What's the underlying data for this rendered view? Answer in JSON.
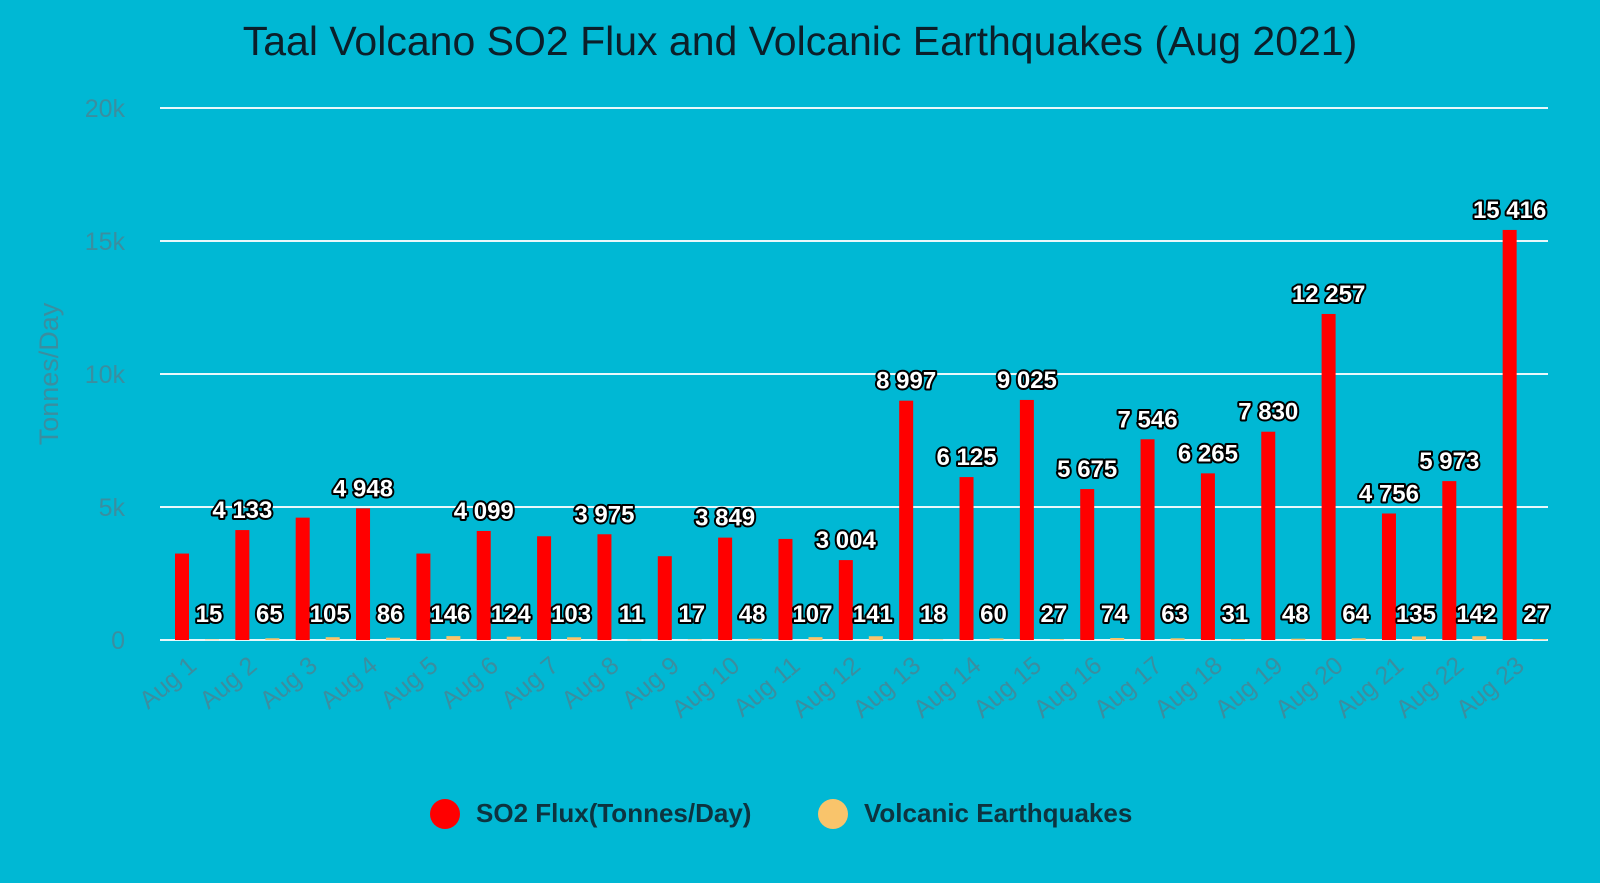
{
  "colors": {
    "background": "#00B8D4",
    "grid": "#e8f8fb",
    "axis_text": "#3a8ea0",
    "so2": "#FF0000",
    "quakes": "#F9C46B"
  },
  "chart_data": {
    "type": "bar",
    "title": "Taal Volcano SO2 Flux and Volcanic Earthquakes (Aug 2021)",
    "ylabel": "Tonnes/Day",
    "xlabel": "",
    "ylim": [
      0,
      20000
    ],
    "yticks": [
      0,
      5000,
      10000,
      15000,
      20000
    ],
    "ytick_labels": [
      "0",
      "5k",
      "10k",
      "15k",
      "20k"
    ],
    "grid": true,
    "legend_position": "bottom-center",
    "categories": [
      "Aug 1",
      "Aug 2",
      "Aug 3",
      "Aug 4",
      "Aug 5",
      "Aug 6",
      "Aug 7",
      "Aug 8",
      "Aug 9",
      "Aug 10",
      "Aug 11",
      "Aug 12",
      "Aug 13",
      "Aug 14",
      "Aug 15",
      "Aug 16",
      "Aug 17",
      "Aug 18",
      "Aug 19",
      "Aug 20",
      "Aug 21",
      "Aug 22",
      "Aug 23"
    ],
    "series": [
      {
        "name": "SO2 Flux(Tonnes/Day)",
        "values": [
          3250,
          4133,
          4600,
          4948,
          3250,
          4099,
          3900,
          3975,
          3150,
          3849,
          3800,
          3004,
          8997,
          6125,
          9025,
          5675,
          7546,
          6265,
          7830,
          12257,
          4756,
          5973,
          15416
        ],
        "labels": [
          "",
          "4 133",
          "",
          "4 948",
          "",
          "4 099",
          "",
          "3 975",
          "",
          "3 849",
          "",
          "3 004",
          "8 997",
          "6 125",
          "9 025",
          "5 675",
          "7 546",
          "6 265",
          "7 830",
          "12 257",
          "4 756",
          "5 973",
          "15 416"
        ]
      },
      {
        "name": "Volcanic Earthquakes",
        "values": [
          15,
          65,
          105,
          86,
          146,
          124,
          103,
          11,
          17,
          48,
          107,
          141,
          18,
          60,
          27,
          74,
          63,
          31,
          48,
          64,
          135,
          142,
          27
        ],
        "labels": [
          "15",
          "65",
          "105",
          "86",
          "146",
          "124",
          "103",
          "11",
          "17",
          "48",
          "107",
          "141",
          "18",
          "60",
          "27",
          "74",
          "63",
          "31",
          "48",
          "64",
          "135",
          "142",
          "27"
        ]
      }
    ]
  }
}
